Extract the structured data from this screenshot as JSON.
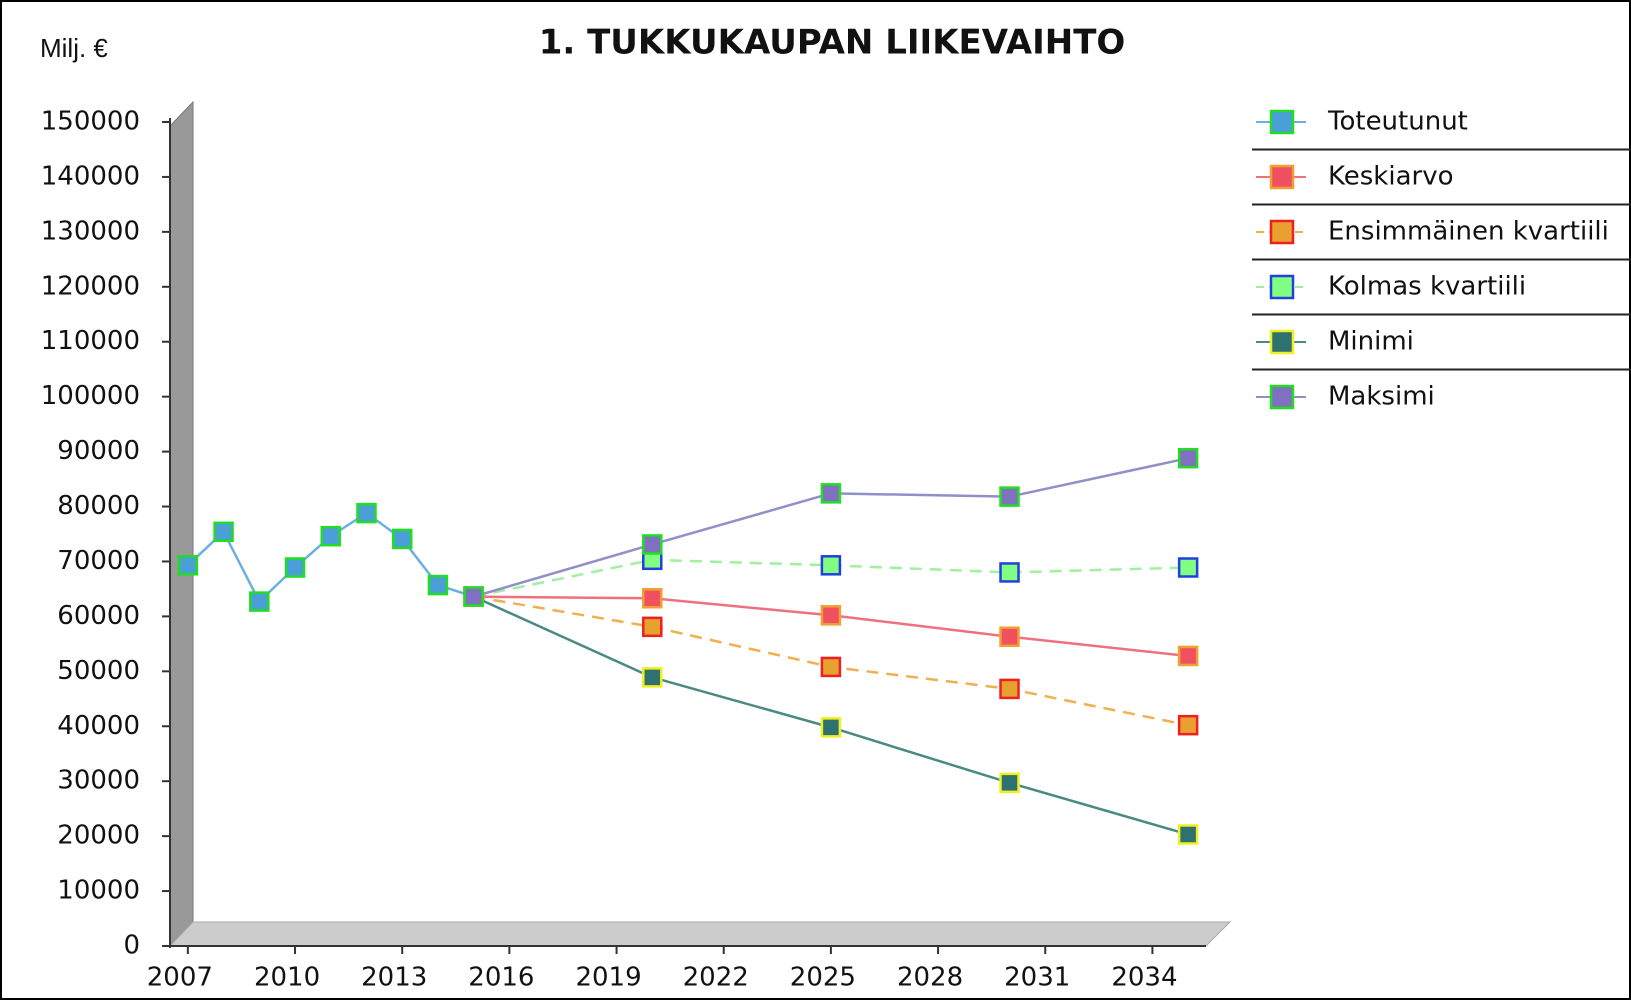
{
  "chart_data": {
    "type": "line",
    "title": "1. TUKKUKAUPAN LIIKEVAIHTO",
    "ylabel": "Milj. €",
    "xlim": [
      2006.5,
      2035.5
    ],
    "xticks": [
      2007,
      2010,
      2013,
      2016,
      2019,
      2022,
      2025,
      2028,
      2031,
      2034
    ],
    "ylim": [
      0,
      150000
    ],
    "yticks": [
      0,
      10000,
      20000,
      30000,
      40000,
      50000,
      60000,
      70000,
      80000,
      90000,
      100000,
      110000,
      120000,
      130000,
      140000,
      150000
    ],
    "legend": "right",
    "series": [
      {
        "name": "Toteutunut",
        "color": "#6ab0e0",
        "marker_color": "#4a9fd8",
        "marker_edge": "#22dd22",
        "dashed": false,
        "x": [
          2007,
          2008,
          2009,
          2010,
          2011,
          2012,
          2013,
          2014,
          2015
        ],
        "values": [
          69300,
          75400,
          62700,
          68900,
          74600,
          78800,
          74100,
          65700,
          63600
        ]
      },
      {
        "name": "Keskiarvo",
        "color": "#f07080",
        "marker_color": "#f05060",
        "marker_edge": "#f0a030",
        "dashed": false,
        "x": [
          2015,
          2020,
          2025,
          2030,
          2035
        ],
        "values": [
          63600,
          63300,
          60200,
          56300,
          52800
        ]
      },
      {
        "name": "Ensimmäinen kvartiili",
        "color": "#f0b050",
        "marker_color": "#e8a030",
        "marker_edge": "#ee2020",
        "dashed": true,
        "x": [
          2015,
          2020,
          2025,
          2030,
          2035
        ],
        "values": [
          63600,
          58100,
          50800,
          46800,
          40200
        ]
      },
      {
        "name": "Kolmas kvartiili",
        "color": "#a0f0a0",
        "marker_color": "#80ff80",
        "marker_edge": "#2040e0",
        "dashed": true,
        "x": [
          2015,
          2020,
          2025,
          2030,
          2035
        ],
        "values": [
          63600,
          70300,
          69300,
          68000,
          68900
        ]
      },
      {
        "name": "Minimi",
        "color": "#4a8a80",
        "marker_color": "#2f7070",
        "marker_edge": "#f0f020",
        "dashed": false,
        "x": [
          2015,
          2020,
          2025,
          2030,
          2035
        ],
        "values": [
          63600,
          48900,
          39800,
          29700,
          20300
        ]
      },
      {
        "name": "Maksimi",
        "color": "#9090c8",
        "marker_color": "#8070c0",
        "marker_edge": "#22dd22",
        "dashed": false,
        "x": [
          2015,
          2020,
          2025,
          2030,
          2035
        ],
        "values": [
          63600,
          73100,
          82400,
          81800,
          88800
        ]
      }
    ]
  }
}
